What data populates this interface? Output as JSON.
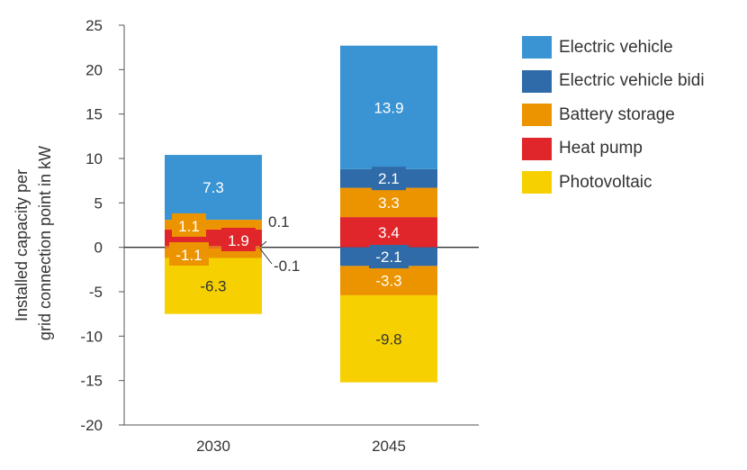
{
  "chart_data": {
    "type": "bar",
    "stacked": true,
    "ylabel": "Installed capacity per grid connection point in kW",
    "ylabel_lines": [
      "Installed capacity per",
      "grid connection point in kW"
    ],
    "ylim": [
      -20,
      25
    ],
    "yticks": [
      "25",
      "20",
      "15",
      "10",
      "5",
      "0",
      "-5",
      "-10",
      "-15",
      "-20"
    ],
    "categories": [
      "2030",
      "2045"
    ],
    "series": [
      {
        "name": "Electric vehicle",
        "color": "#3a94d3",
        "values": [
          7.3,
          13.9
        ],
        "labels": [
          "7.3",
          "13.9"
        ]
      },
      {
        "name": "Electric vehicle bidi",
        "color": "#2f6ba8",
        "values_pos": [
          0,
          2.1
        ],
        "values_neg": [
          0,
          -2.1
        ],
        "labels_pos": [
          "",
          "2.1"
        ],
        "labels_neg": [
          "",
          "-2.1"
        ]
      },
      {
        "name": "Battery storage",
        "color": "#ec9400",
        "values_pos": [
          1.1,
          3.3
        ],
        "values_neg": [
          -1.1,
          -3.3
        ],
        "labels_pos": [
          "1.1",
          "3.3"
        ],
        "labels_neg": [
          "-1.1",
          "-3.3"
        ]
      },
      {
        "name": "Heat pump",
        "color": "#e0262a",
        "values_pos": [
          1.9,
          3.4
        ],
        "values_neg": [
          -0.1,
          0
        ],
        "labels_pos": [
          "1.9",
          "3.4"
        ],
        "labels_neg": [
          "-0.1",
          ""
        ]
      },
      {
        "name": "Photovoltaic",
        "color": "#f6d000",
        "values_pos": [
          0.1,
          0
        ],
        "values_neg": [
          -6.3,
          -9.8
        ],
        "labels_pos": [
          "0.1",
          ""
        ],
        "labels_neg": [
          "-6.3",
          "-9.8"
        ]
      }
    ],
    "legend": {
      "position": "right",
      "entries": [
        {
          "name": "Electric vehicle",
          "color": "#3a94d3"
        },
        {
          "name": "Electric vehicle bidi",
          "color": "#2f6ba8"
        },
        {
          "name": "Battery storage",
          "color": "#ec9400"
        },
        {
          "name": "Heat pump",
          "color": "#e0262a"
        },
        {
          "name": "Photovoltaic",
          "color": "#f6d000"
        }
      ]
    },
    "grid": false
  }
}
